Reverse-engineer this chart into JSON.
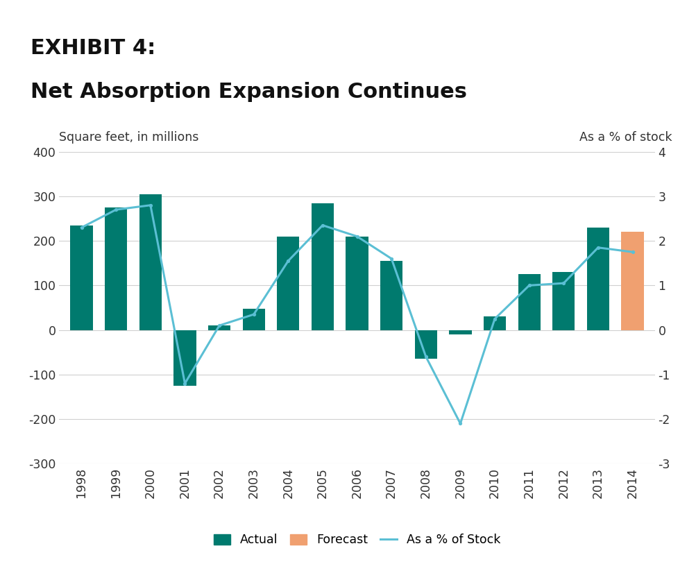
{
  "years": [
    "1998",
    "1999",
    "2000",
    "2001",
    "2002",
    "2003",
    "2004",
    "2005",
    "2006",
    "2007",
    "2008",
    "2009",
    "2010",
    "2011",
    "2012",
    "2013",
    "2014"
  ],
  "bar_values": [
    235,
    275,
    305,
    -125,
    10,
    48,
    210,
    285,
    210,
    155,
    -65,
    -10,
    30,
    125,
    130,
    230,
    220
  ],
  "bar_colors": [
    "#007a6e",
    "#007a6e",
    "#007a6e",
    "#007a6e",
    "#007a6e",
    "#007a6e",
    "#007a6e",
    "#007a6e",
    "#007a6e",
    "#007a6e",
    "#007a6e",
    "#007a6e",
    "#007a6e",
    "#007a6e",
    "#007a6e",
    "#007a6e",
    "#f0a070"
  ],
  "line_values": [
    2.3,
    2.7,
    2.8,
    -1.2,
    0.1,
    0.35,
    1.55,
    2.35,
    2.1,
    1.6,
    -0.6,
    -2.1,
    0.25,
    1.0,
    1.05,
    1.85,
    1.75
  ],
  "line_color": "#5bbfd4",
  "line_width": 2.2,
  "left_ylabel": "Square feet, in millions",
  "right_ylabel": "As a % of stock",
  "ylim_left": [
    -300,
    400
  ],
  "ylim_right": [
    -3,
    4
  ],
  "yticks_left": [
    -300,
    -200,
    -100,
    0,
    100,
    200,
    300,
    400
  ],
  "yticks_right": [
    -3,
    -2,
    -1,
    0,
    1,
    2,
    3,
    4
  ],
  "title_line1": "EXHIBIT 4:",
  "title_line2": "Net Absorption Expansion Continues",
  "title_bg_color": "#c0c0c0",
  "title_font_size": 22,
  "legend_actual_color": "#007a6e",
  "legend_forecast_color": "#f0a070",
  "legend_line_color": "#5bbfd4",
  "grid_color": "#d0d0d0",
  "background_color": "#ffffff",
  "bar_width": 0.65
}
